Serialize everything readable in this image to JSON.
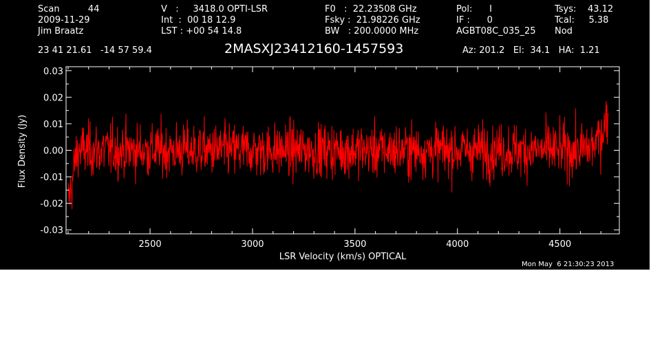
{
  "header": {
    "col1": {
      "row1": "Scan          44",
      "row2": "2009-11-29",
      "row3": "Jim Braatz"
    },
    "col2": {
      "row1": "V   :     3418.0 OPTI-LSR",
      "row2": "Int  :  00 18 12.9",
      "row3": "LST : +00 54 14.8"
    },
    "col3": {
      "row1": "F0   :  22.23508 GHz",
      "row2": "Fsky :  21.98226 GHz",
      "row3": "BW   : 200.0000 MHz"
    },
    "col4": {
      "row1": "Pol:      I",
      "row2": "IF :      0",
      "row3": "AGBT08C_035_25"
    },
    "col5": {
      "row1": "Tsys:    43.12",
      "row2": "Tcal:     5.38",
      "row3": "Nod"
    },
    "coords": "23 41 21.61   -14 57 59.4",
    "source": "2MASXJ23412160-1457593",
    "azel": "Az: 201.2   El:  34.1   HA:  1.21",
    "timestamp": "Mon May  6 21:30:23 2013"
  },
  "chart_data": {
    "type": "line",
    "xlabel": "LSR Velocity (km/s) OPTICAL",
    "ylabel": "Flux Density (Jy)",
    "xlim": [
      2090,
      4790
    ],
    "ylim": [
      -0.0315,
      0.0315
    ],
    "x_ticks": [
      2500,
      3000,
      3500,
      4000,
      4500
    ],
    "y_ticks": [
      -0.03,
      -0.02,
      -0.01,
      0.0,
      0.01,
      0.02,
      0.03
    ],
    "x_tick_labels": [
      "2500",
      "3000",
      "3500",
      "4000",
      "4500"
    ],
    "y_tick_labels": [
      "-0.03",
      "-0.02",
      "-0.01",
      "0.00",
      "0.01",
      "0.02",
      "0.03"
    ],
    "grid": false,
    "series": [
      {
        "color": "#ff0000",
        "x": [
          2100,
          2110,
          2120,
          2130,
          2140,
          2150,
          2200,
          2300,
          2400,
          2500,
          2600,
          2700,
          2800,
          2900,
          3000,
          3100,
          3200,
          3300,
          3400,
          3500,
          3600,
          3700,
          3800,
          3900,
          4000,
          4100,
          4200,
          4300,
          4400,
          4500,
          4600,
          4650,
          4680,
          4700,
          4720,
          4735
        ],
        "y": [
          -0.019,
          -0.016,
          -0.012,
          -0.006,
          -0.002,
          0.0,
          0.0,
          0.0,
          0.0,
          0.0,
          0.0,
          0.0,
          0.0,
          0.0,
          0.0,
          0.0,
          0.0,
          0.0,
          0.0,
          0.0,
          0.0,
          0.0,
          0.0,
          0.0,
          0.0,
          0.0,
          0.0,
          0.0,
          0.0,
          0.0,
          0.0,
          0.001,
          0.003,
          0.006,
          0.01,
          0.013
        ],
        "noise_rms": 0.005
      }
    ]
  },
  "colors": {
    "background": "#000000",
    "foreground": "#ffffff",
    "trace": "#ff0000"
  }
}
